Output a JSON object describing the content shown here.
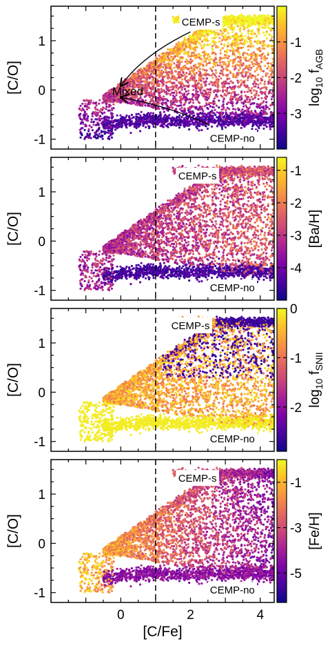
{
  "chart_data": [
    {
      "type": "scatter",
      "panel": 1,
      "xlim": [
        -2,
        4.4
      ],
      "ylim": [
        -1.2,
        1.7
      ],
      "xticks": [
        "0",
        "2",
        "4"
      ],
      "xtick_values": [
        0,
        2,
        4
      ],
      "yticks": [
        "1",
        "0",
        "-1"
      ],
      "ytick_values": [
        1,
        0,
        -1
      ],
      "ylabel": "[C/O]",
      "xlabel": "",
      "vline_x": 1,
      "colorbar": {
        "label_main": "log",
        "label_sub": "10",
        "label_tail": " f",
        "label_sub2": "AGB",
        "range": [
          -4,
          0
        ],
        "ticks": [
          "-1",
          "-2",
          "-3"
        ],
        "tick_values": [
          -1,
          -2,
          -3
        ]
      },
      "annotations": [
        {
          "text": "CEMP-s",
          "x": 2.3,
          "y": 1.38
        },
        {
          "text": "CEMP-no",
          "x": 3.2,
          "y": -0.98
        },
        {
          "text": "Mixed",
          "x": 0.2,
          "y": -0.02
        }
      ],
      "arrows": [
        {
          "from": [
            2.0,
            1.18
          ],
          "to": [
            0.0,
            0.08
          ]
        },
        {
          "from": [
            2.5,
            -0.7
          ],
          "to": [
            0.0,
            -0.15
          ]
        }
      ]
    },
    {
      "type": "scatter",
      "panel": 2,
      "xlim": [
        -2,
        4.4
      ],
      "ylim": [
        -1.2,
        1.7
      ],
      "xticks": [
        "0",
        "2",
        "4"
      ],
      "xtick_values": [
        0,
        2,
        4
      ],
      "yticks": [
        "1",
        "0",
        "-1"
      ],
      "ytick_values": [
        1,
        0,
        -1
      ],
      "ylabel": "[C/O]",
      "xlabel": "",
      "vline_x": 1,
      "colorbar": {
        "label_main": "[Ba/H]",
        "range": [
          -5,
          -0.6
        ],
        "ticks": [
          "-1",
          "-2",
          "-3",
          "-4"
        ],
        "tick_values": [
          -1,
          -2,
          -3,
          -4
        ]
      },
      "annotations": [
        {
          "text": "CEMP-s",
          "x": 2.2,
          "y": 1.32
        },
        {
          "text": "CEMP-no",
          "x": 3.2,
          "y": -0.95
        }
      ]
    },
    {
      "type": "scatter",
      "panel": 3,
      "xlim": [
        -2,
        4.4
      ],
      "ylim": [
        -1.2,
        1.7
      ],
      "xticks": [
        "0",
        "2",
        "4"
      ],
      "xtick_values": [
        0,
        2,
        4
      ],
      "yticks": [
        "1",
        "0",
        "-1"
      ],
      "ytick_values": [
        1,
        0,
        -1
      ],
      "ylabel": "[C/O]",
      "xlabel": "",
      "vline_x": 1,
      "colorbar": {
        "label_main": "log",
        "label_sub": "10",
        "label_tail": " f",
        "label_sub2": "SNII",
        "range": [
          -2.9,
          0
        ],
        "ticks": [
          "0",
          "-1",
          "-2"
        ],
        "tick_values": [
          0,
          -1,
          -2
        ]
      },
      "annotations": [
        {
          "text": "CEMP-s",
          "x": 2.0,
          "y": 1.35
        },
        {
          "text": "CEMP-no",
          "x": 3.2,
          "y": -0.95
        }
      ]
    },
    {
      "type": "scatter",
      "panel": 4,
      "xlim": [
        -2,
        4.4
      ],
      "ylim": [
        -1.2,
        1.7
      ],
      "xticks": [
        "0",
        "2",
        "4"
      ],
      "xtick_values": [
        0,
        2,
        4
      ],
      "yticks": [
        "1",
        "0",
        "-1"
      ],
      "ytick_values": [
        1,
        0,
        -1
      ],
      "ylabel": "[C/O]",
      "xlabel": "[C/Fe]",
      "vline_x": 1,
      "colorbar": {
        "label_main": "[Fe/H]",
        "range": [
          -6.3,
          0
        ],
        "ticks": [
          "-1",
          "-3",
          "-5"
        ],
        "tick_values": [
          -1,
          -3,
          -5
        ]
      },
      "annotations": [
        {
          "text": "CEMP-s",
          "x": 2.2,
          "y": 1.32
        },
        {
          "text": "CEMP-no",
          "x": 3.2,
          "y": -0.95
        }
      ]
    }
  ]
}
